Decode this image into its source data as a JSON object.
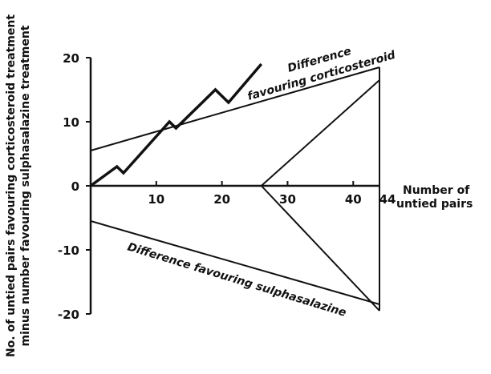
{
  "chart_data": {
    "type": "line",
    "title": "",
    "xlabel": [
      "Number of",
      "untied pairs"
    ],
    "ylabel": [
      "No. of untied pairs favouring corticosteroid treatment",
      "minus number favouring sulphasalazine treatment"
    ],
    "xlim": [
      0,
      44
    ],
    "ylim": [
      -20,
      20
    ],
    "x_ticks": [
      10,
      20,
      30,
      40,
      44
    ],
    "y_ticks": [
      20,
      10,
      0,
      -10,
      -20
    ],
    "grid": false,
    "series": [
      {
        "values": [
          {
            "x": 0,
            "y": 0
          },
          {
            "x": 4,
            "y": 3
          },
          {
            "x": 5,
            "y": 2
          },
          {
            "x": 12,
            "y": 10
          },
          {
            "x": 13,
            "y": 9
          },
          {
            "x": 19,
            "y": 15
          },
          {
            "x": 21,
            "y": 13
          },
          {
            "x": 26,
            "y": 19
          }
        ]
      }
    ],
    "boundaries": {
      "upper": {
        "lines": [
          [
            {
              "x": 0,
              "y": 5.5
            },
            {
              "x": 44,
              "y": 18.5
            }
          ],
          [
            {
              "x": 26,
              "y": 0
            },
            {
              "x": 44,
              "y": 16.5
            }
          ]
        ]
      },
      "lower": {
        "lines": [
          [
            {
              "x": 0,
              "y": -5.5
            },
            {
              "x": 44,
              "y": -18.5
            }
          ],
          [
            {
              "x": 26,
              "y": 0
            },
            {
              "x": 44,
              "y": -19.5
            }
          ]
        ]
      },
      "closing_edge": [
        {
          "x": 44,
          "y": 18.5
        },
        {
          "x": 44,
          "y": -19.5
        }
      ]
    },
    "annotations": [
      {
        "lines": [
          "Difference",
          "favouring corticosteroid"
        ]
      },
      {
        "lines": [
          "Difference favouring sulphasalazine"
        ]
      }
    ]
  }
}
